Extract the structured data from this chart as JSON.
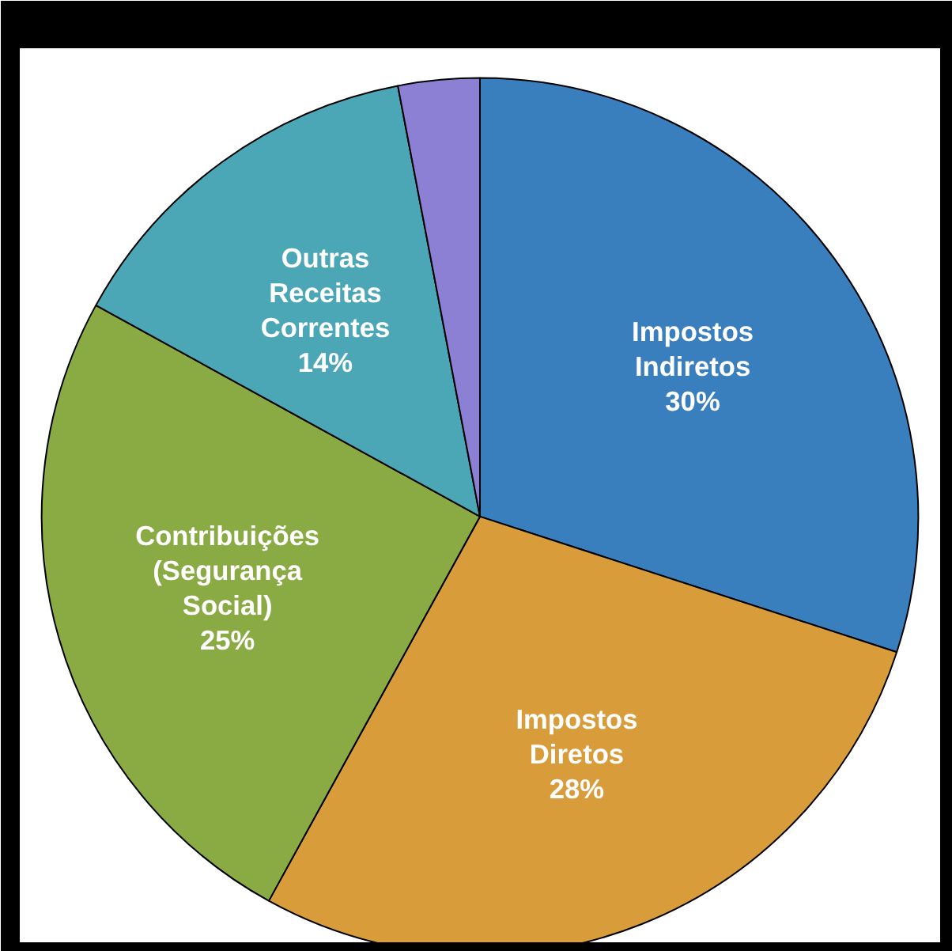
{
  "chart_data": {
    "type": "pie",
    "categories": [
      "Impostos Indiretos",
      "Impostos Diretos",
      "Contribuições (Segurança Social)",
      "Outras Receitas Correntes",
      null
    ],
    "values": [
      30,
      28,
      25,
      14,
      3
    ],
    "colors": [
      "#3a7fbd",
      "#d89c3a",
      "#8aab44",
      "#4ba6b6",
      "#8b80d4"
    ],
    "value_labels": [
      "30%",
      "28%",
      "25%",
      "14%",
      null
    ]
  }
}
